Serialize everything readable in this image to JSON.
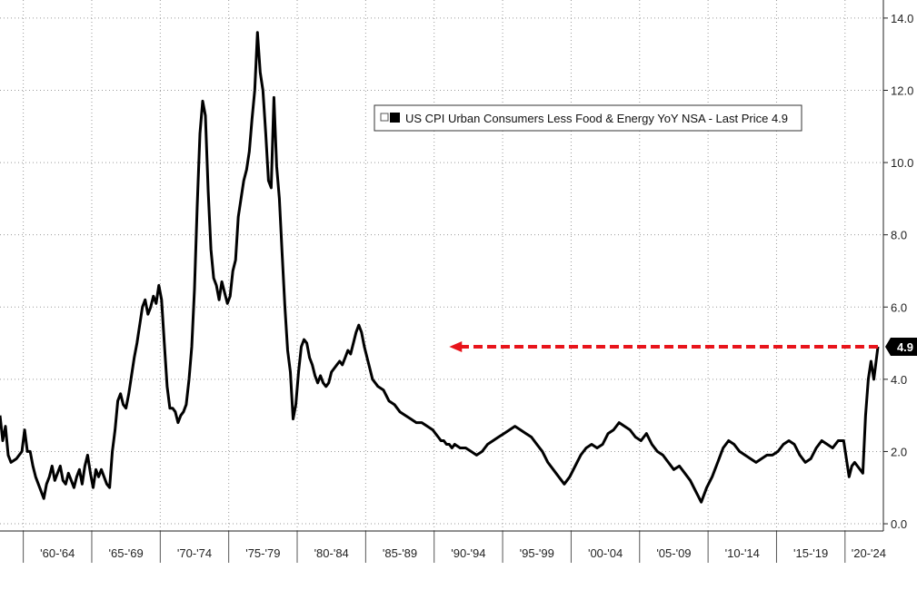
{
  "chart_data": {
    "type": "line",
    "legend": {
      "label": "US CPI Urban Consumers Less Food & Energy YoY NSA - Last Price 4.9",
      "placement": "top-center"
    },
    "y_axis": {
      "side": "right",
      "ylim": [
        -0.2,
        14.5
      ],
      "ticks": [
        "0.0",
        "2.0",
        "4.0",
        "6.0",
        "8.0",
        "10.0",
        "12.0",
        "14.0"
      ],
      "tick_values": [
        0,
        2,
        4,
        6,
        8,
        10,
        12,
        14
      ]
    },
    "x_axis": {
      "xlim": [
        1957.8,
        2022.3
      ],
      "period_labels": [
        "'60-'64",
        "'65-'69",
        "'70-'74",
        "'75-'79",
        "'80-'84",
        "'85-'89",
        "'90-'94",
        "'95-'99",
        "'00-'04",
        "'05-'09",
        "'10-'14",
        "'15-'19",
        "'20-'24"
      ],
      "period_starts": [
        1959.5,
        1964.5,
        1969.5,
        1974.5,
        1979.5,
        1984.5,
        1989.5,
        1994.5,
        1999.5,
        2004.5,
        2009.5,
        2014.5,
        2019.5
      ]
    },
    "grid": true,
    "last_value_label": "4.9",
    "annotation": {
      "type": "dashed-arrow",
      "color": "#e8141b",
      "from": [
        2021.9,
        4.9
      ],
      "to": [
        1990.6,
        4.9
      ]
    },
    "colors": {
      "line": "#000000",
      "grid": "#9a9a9a",
      "arrow": "#e8141b",
      "last_value_bg": "#000000"
    },
    "series": [
      {
        "name": "US CPI Urban Consumers Less Food & Energy YoY NSA",
        "x": [
          1957.8,
          1958.0,
          1958.2,
          1958.4,
          1958.6,
          1959.0,
          1959.4,
          1959.6,
          1959.8,
          1960.0,
          1960.2,
          1960.4,
          1960.6,
          1960.8,
          1961.0,
          1961.2,
          1961.4,
          1961.6,
          1961.8,
          1962.0,
          1962.2,
          1962.4,
          1962.6,
          1962.8,
          1963.0,
          1963.2,
          1963.4,
          1963.6,
          1963.8,
          1964.0,
          1964.2,
          1964.4,
          1964.6,
          1964.8,
          1965.0,
          1965.2,
          1965.4,
          1965.6,
          1965.8,
          1966.0,
          1966.2,
          1966.4,
          1966.6,
          1966.8,
          1967.0,
          1967.2,
          1967.4,
          1967.6,
          1967.8,
          1968.0,
          1968.2,
          1968.4,
          1968.6,
          1968.8,
          1969.0,
          1969.2,
          1969.4,
          1969.6,
          1969.8,
          1970.0,
          1970.2,
          1970.4,
          1970.6,
          1970.8,
          1971.0,
          1971.2,
          1971.4,
          1971.6,
          1971.8,
          1972.0,
          1972.2,
          1972.4,
          1972.6,
          1972.8,
          1973.0,
          1973.2,
          1973.4,
          1973.6,
          1973.8,
          1974.0,
          1974.2,
          1974.4,
          1974.6,
          1974.8,
          1975.0,
          1975.2,
          1975.4,
          1975.6,
          1975.8,
          1976.0,
          1976.2,
          1976.4,
          1976.6,
          1976.8,
          1977.0,
          1977.2,
          1977.4,
          1977.6,
          1977.8,
          1978.0,
          1978.2,
          1978.4,
          1978.6,
          1978.8,
          1979.0,
          1979.2,
          1979.4,
          1979.6,
          1979.8,
          1980.0,
          1980.2,
          1980.4,
          1980.6,
          1980.8,
          1981.0,
          1981.2,
          1981.4,
          1981.6,
          1981.8,
          1982.0,
          1982.2,
          1982.4,
          1982.6,
          1982.8,
          1983.0,
          1983.2,
          1983.4,
          1983.6,
          1983.8,
          1984.0,
          1984.2,
          1984.4,
          1984.6,
          1984.8,
          1985.0,
          1985.4,
          1985.8,
          1986.2,
          1986.6,
          1987.0,
          1987.4,
          1987.8,
          1988.2,
          1988.6,
          1989.0,
          1989.4,
          1989.6,
          1989.8,
          1990.0,
          1990.2,
          1990.4,
          1990.6,
          1990.8,
          1991.0,
          1991.4,
          1991.8,
          1992.2,
          1992.6,
          1993.0,
          1993.4,
          1993.8,
          1994.2,
          1994.6,
          1995.0,
          1995.4,
          1995.8,
          1996.2,
          1996.6,
          1997.0,
          1997.4,
          1997.8,
          1998.2,
          1998.6,
          1999.0,
          1999.4,
          1999.8,
          2000.2,
          2000.6,
          2001.0,
          2001.4,
          2001.8,
          2002.2,
          2002.6,
          2003.0,
          2003.4,
          2003.8,
          2004.2,
          2004.6,
          2005.0,
          2005.4,
          2005.8,
          2006.2,
          2006.6,
          2007.0,
          2007.4,
          2007.8,
          2008.2,
          2008.6,
          2009.0,
          2009.4,
          2009.8,
          2010.2,
          2010.6,
          2010.8,
          2011.0,
          2011.4,
          2011.8,
          2012.2,
          2012.6,
          2013.0,
          2013.4,
          2013.8,
          2014.2,
          2014.6,
          2015.0,
          2015.4,
          2015.8,
          2016.2,
          2016.6,
          2017.0,
          2017.4,
          2017.8,
          2018.2,
          2018.6,
          2019.0,
          2019.4,
          2019.8,
          2020.0,
          2020.2,
          2020.4,
          2020.6,
          2020.8,
          2021.0,
          2021.2,
          2021.4,
          2021.6,
          2021.8,
          2021.9
        ],
        "values": [
          3.0,
          2.3,
          2.7,
          1.9,
          1.7,
          1.8,
          2.0,
          2.6,
          2.0,
          2.0,
          1.6,
          1.3,
          1.1,
          0.9,
          0.7,
          1.1,
          1.3,
          1.6,
          1.2,
          1.4,
          1.6,
          1.2,
          1.1,
          1.4,
          1.2,
          1.0,
          1.3,
          1.5,
          1.1,
          1.6,
          1.9,
          1.4,
          1.0,
          1.5,
          1.3,
          1.5,
          1.3,
          1.1,
          1.0,
          2.0,
          2.6,
          3.4,
          3.6,
          3.3,
          3.2,
          3.6,
          4.1,
          4.6,
          5.0,
          5.5,
          6.0,
          6.2,
          5.8,
          6.0,
          6.3,
          6.1,
          6.6,
          6.2,
          5.0,
          3.8,
          3.2,
          3.2,
          3.1,
          2.8,
          3.0,
          3.1,
          3.3,
          4.0,
          4.9,
          6.5,
          8.8,
          10.8,
          11.7,
          11.3,
          9.2,
          7.6,
          6.8,
          6.6,
          6.2,
          6.7,
          6.4,
          6.1,
          6.3,
          7.0,
          7.3,
          8.5,
          9.0,
          9.5,
          9.8,
          10.3,
          11.2,
          12.0,
          13.6,
          12.5,
          12.0,
          10.8,
          9.5,
          9.3,
          11.8,
          9.9,
          9.0,
          7.5,
          6.0,
          4.8,
          4.2,
          2.9,
          3.3,
          4.2,
          4.9,
          5.1,
          5.0,
          4.6,
          4.4,
          4.1,
          3.9,
          4.1,
          3.9,
          3.8,
          3.9,
          4.2,
          4.3,
          4.4,
          4.5,
          4.4,
          4.6,
          4.8,
          4.7,
          5.0,
          5.3,
          5.5,
          5.3,
          4.9,
          4.6,
          4.3,
          4.0,
          3.8,
          3.7,
          3.4,
          3.3,
          3.1,
          3.0,
          2.9,
          2.8,
          2.8,
          2.7,
          2.6,
          2.5,
          2.4,
          2.3,
          2.3,
          2.2,
          2.2,
          2.1,
          2.2,
          2.1,
          2.1,
          2.0,
          1.9,
          2.0,
          2.2,
          2.3,
          2.4,
          2.5,
          2.6,
          2.7,
          2.6,
          2.5,
          2.4,
          2.2,
          2.0,
          1.7,
          1.5,
          1.3,
          1.1,
          1.3,
          1.6,
          1.9,
          2.1,
          2.2,
          2.1,
          2.2,
          2.5,
          2.6,
          2.8,
          2.7,
          2.6,
          2.4,
          2.3,
          2.5,
          2.2,
          2.0,
          1.9,
          1.7,
          1.5,
          1.6,
          1.4,
          1.2,
          0.9,
          0.6,
          1.0,
          1.3,
          1.7,
          2.1,
          2.2,
          2.3,
          2.2,
          2.0,
          1.9,
          1.8,
          1.7,
          1.8,
          1.9,
          1.9,
          2.0,
          2.2,
          2.3,
          2.2,
          1.9,
          1.7,
          1.8,
          2.1,
          2.3,
          2.2,
          2.1,
          2.3,
          2.3,
          1.3,
          1.6,
          1.7,
          1.6,
          1.5,
          1.4,
          3.0,
          4.0,
          4.5,
          4.0,
          4.6,
          4.9
        ]
      }
    ]
  }
}
